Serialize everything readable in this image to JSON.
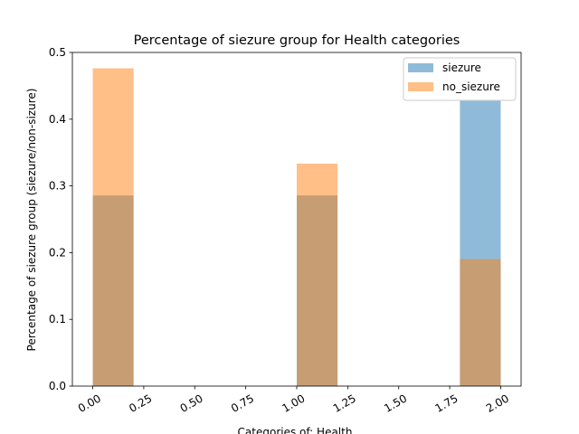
{
  "chart_data": {
    "type": "bar",
    "title": "Percentage of siezure group for Health  categories",
    "xlabel": "Categories of: Health",
    "ylabel": "Percentage of siezure group (siezure/non-sizure)",
    "xlim": [
      -0.1,
      2.1
    ],
    "ylim": [
      0,
      0.5
    ],
    "xticks": [
      0.0,
      0.25,
      0.5,
      0.75,
      1.0,
      1.25,
      1.5,
      1.75,
      2.0
    ],
    "xtick_labels": [
      "0.00",
      "0.25",
      "0.50",
      "0.75",
      "1.00",
      "1.25",
      "1.50",
      "1.75",
      "2.00"
    ],
    "yticks": [
      0.0,
      0.1,
      0.2,
      0.3,
      0.4,
      0.5
    ],
    "ytick_labels": [
      "0.0",
      "0.1",
      "0.2",
      "0.3",
      "0.4",
      "0.5"
    ],
    "bins": [
      [
        0.0,
        0.2
      ],
      [
        1.0,
        1.2
      ],
      [
        1.8,
        2.0
      ]
    ],
    "series": [
      {
        "name": "siezure",
        "color": "#1f77b4",
        "opacity": 0.5,
        "values": [
          0.2857,
          0.2857,
          0.4286
        ]
      },
      {
        "name": "no_siezure",
        "color": "#ff7f0e",
        "opacity": 0.5,
        "values": [
          0.4762,
          0.3333,
          0.1905
        ]
      }
    ],
    "legend": "top-right",
    "grid": false
  }
}
